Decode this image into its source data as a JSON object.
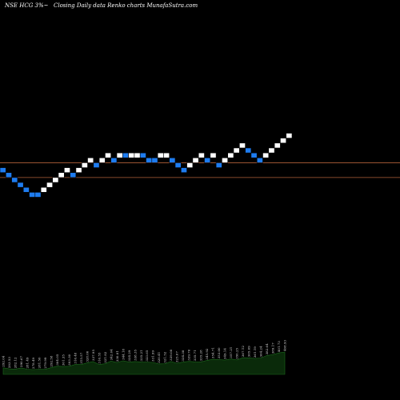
{
  "header": {
    "left": "NSE HCG 3%~",
    "center": "Closing Daily data Renko charts MunafaSutra.com"
  },
  "colors": {
    "background": "#000000",
    "up_brick": "#ffffff",
    "down_brick": "#1e7cf0",
    "brick_border": "#000000",
    "ref_line": "#b0603a",
    "volume_fill": "#0a2a0a",
    "volume_stroke": "#1c6a1c",
    "volume_label": "#dddddd"
  },
  "chart_data": {
    "type": "renko",
    "brick_size_percent": 3,
    "bricks": [
      {
        "dir": "down",
        "low": 364.48,
        "high": 376.19
      },
      {
        "dir": "down",
        "low": 352.78,
        "high": 364.48
      },
      {
        "dir": "down",
        "low": 341.07,
        "high": 352.78
      },
      {
        "dir": "down",
        "low": 329.37,
        "high": 341.07
      },
      {
        "dir": "down",
        "low": 317.66,
        "high": 329.37
      },
      {
        "dir": "down",
        "low": 305.96,
        "high": 317.66
      },
      {
        "dir": "down",
        "low": 305.96,
        "high": 317.66
      },
      {
        "dir": "up",
        "low": 317.66,
        "high": 329.37
      },
      {
        "dir": "up",
        "low": 329.37,
        "high": 341.07
      },
      {
        "dir": "up",
        "low": 341.07,
        "high": 352.78
      },
      {
        "dir": "up",
        "low": 352.78,
        "high": 364.48
      },
      {
        "dir": "up",
        "low": 364.48,
        "high": 376.19
      },
      {
        "dir": "down",
        "low": 352.78,
        "high": 364.48
      },
      {
        "dir": "up",
        "low": 364.48,
        "high": 376.19
      },
      {
        "dir": "up",
        "low": 376.19,
        "high": 387.89
      },
      {
        "dir": "up",
        "low": 387.89,
        "high": 399.6
      },
      {
        "dir": "down",
        "low": 376.19,
        "high": 387.89
      },
      {
        "dir": "up",
        "low": 387.89,
        "high": 399.6
      },
      {
        "dir": "up",
        "low": 399.6,
        "high": 411.3
      },
      {
        "dir": "down",
        "low": 387.89,
        "high": 399.6
      },
      {
        "dir": "up",
        "low": 399.6,
        "high": 411.3
      },
      {
        "dir": "down",
        "low": 399.6,
        "high": 411.3
      },
      {
        "dir": "up",
        "low": 399.6,
        "high": 411.3
      },
      {
        "dir": "up",
        "low": 399.6,
        "high": 411.3
      },
      {
        "dir": "down",
        "low": 399.6,
        "high": 411.3
      },
      {
        "dir": "down",
        "low": 387.89,
        "high": 399.6
      },
      {
        "dir": "down",
        "low": 387.89,
        "high": 399.6
      },
      {
        "dir": "up",
        "low": 399.6,
        "high": 411.3
      },
      {
        "dir": "up",
        "low": 399.6,
        "high": 411.3
      },
      {
        "dir": "down",
        "low": 387.89,
        "high": 399.6
      },
      {
        "dir": "down",
        "low": 376.19,
        "high": 387.89
      },
      {
        "dir": "down",
        "low": 364.48,
        "high": 376.19
      },
      {
        "dir": "up",
        "low": 376.19,
        "high": 387.89
      },
      {
        "dir": "up",
        "low": 387.89,
        "high": 399.6
      },
      {
        "dir": "up",
        "low": 399.6,
        "high": 411.3
      },
      {
        "dir": "down",
        "low": 387.89,
        "high": 399.6
      },
      {
        "dir": "up",
        "low": 399.6,
        "high": 411.3
      },
      {
        "dir": "down",
        "low": 376.19,
        "high": 387.89
      },
      {
        "dir": "up",
        "low": 387.89,
        "high": 399.6
      },
      {
        "dir": "up",
        "low": 399.6,
        "high": 411.3
      },
      {
        "dir": "up",
        "low": 411.3,
        "high": 423.01
      },
      {
        "dir": "up",
        "low": 423.01,
        "high": 434.71
      },
      {
        "dir": "down",
        "low": 411.3,
        "high": 423.01
      },
      {
        "dir": "down",
        "low": 399.6,
        "high": 411.3
      },
      {
        "dir": "down",
        "low": 387.89,
        "high": 399.6
      },
      {
        "dir": "up",
        "low": 399.6,
        "high": 411.3
      },
      {
        "dir": "up",
        "low": 411.3,
        "high": 423.01
      },
      {
        "dir": "up",
        "low": 423.01,
        "high": 434.71
      },
      {
        "dir": "up",
        "low": 434.71,
        "high": 446.42
      },
      {
        "dir": "up",
        "low": 446.42,
        "high": 458.12
      }
    ],
    "reference_lines": [
      387.89,
      352.78
    ],
    "y_range": [
      305.96,
      458.12
    ],
    "volume_labels": [
      "292.04",
      "283.53",
      "282.12",
      "290.67",
      "281.49",
      "278.49",
      "281.50",
      "279.99",
      "292.58",
      "304.05",
      "301.35",
      "303.30",
      "316.48",
      "315.57",
      "328.00",
      "337.95",
      "316.55",
      "321.82",
      "342.04",
      "330.81",
      "344.18",
      "334.29",
      "338.35",
      "335.21",
      "333.65",
      "331.99",
      "320.41",
      "321.52",
      "339.08",
      "325.07",
      "334.38",
      "339.76",
      "335.71",
      "335.28",
      "345.92",
      "354.71",
      "353.00",
      "349.14",
      "357.21",
      "350.25",
      "367.12",
      "365.69",
      "361.19",
      "364.24",
      "382.64",
      "389.17",
      "401.73",
      "408.93"
    ]
  }
}
